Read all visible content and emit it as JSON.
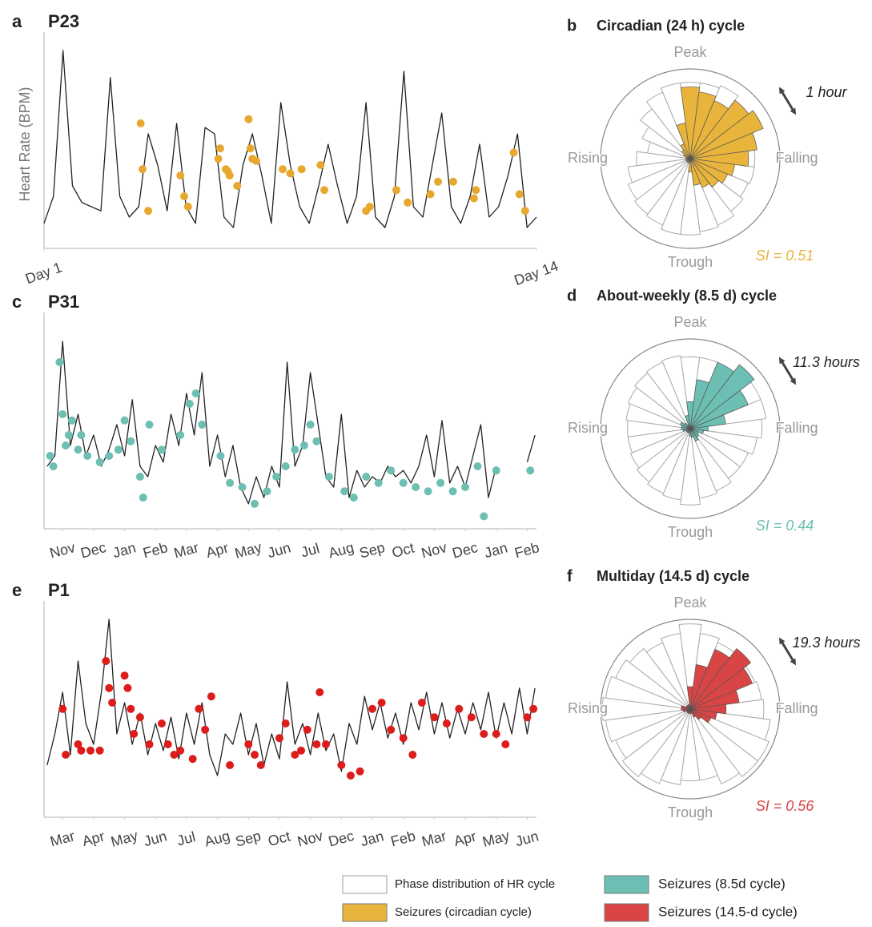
{
  "chart_data": [
    {
      "type": "line",
      "panel": "a",
      "title": "P23",
      "y_label": "Heart Rate (BPM)",
      "x": [
        1,
        1.25,
        1.5,
        1.75,
        2,
        2.25,
        2.5,
        2.75,
        3,
        3.25,
        3.5,
        3.75,
        4,
        4.25,
        4.5,
        4.75,
        5,
        5.25,
        5.5,
        5.75,
        6,
        6.25,
        6.5,
        6.75,
        7,
        7.25,
        7.5,
        7.75,
        8,
        8.25,
        8.5,
        8.75,
        9,
        9.25,
        9.5,
        9.75,
        10,
        10.25,
        10.5,
        10.75,
        11,
        11.25,
        11.5,
        11.75,
        12,
        12.25,
        12.5,
        12.75,
        13,
        13.25,
        13.5,
        13.75,
        14
      ],
      "xlim": [
        1,
        14
      ],
      "xticks": [
        {
          "value": 1,
          "label": "Day 1"
        },
        {
          "value": 14,
          "label": "Day 14"
        }
      ],
      "ylim": [
        0,
        100
      ],
      "series": [
        {
          "color": "#222222",
          "values": [
            12,
            25,
            95,
            30,
            22,
            20,
            18,
            82,
            25,
            15,
            20,
            55,
            40,
            18,
            60,
            20,
            12,
            58,
            55,
            15,
            10,
            40,
            55,
            35,
            12,
            70,
            40,
            20,
            12,
            30,
            50,
            30,
            12,
            25,
            70,
            15,
            10,
            25,
            85,
            20,
            15,
            40,
            65,
            20,
            12,
            25,
            50,
            15,
            20,
            35,
            55,
            10,
            15
          ]
        },
        {
          "type": "scatter",
          "color": "#e8a830",
          "x": [
            3.55,
            3.6,
            3.75,
            4.6,
            4.7,
            4.8,
            5.6,
            5.65,
            5.8,
            5.85,
            5.9,
            6.1,
            6.4,
            6.45,
            6.5,
            6.6,
            7.3,
            7.5,
            7.8,
            8.3,
            8.4,
            9.5,
            9.6,
            10.3,
            10.6,
            11.2,
            11.4,
            11.8,
            12.35,
            12.4,
            13.4,
            13.55,
            13.7
          ],
          "values": [
            60,
            38,
            18,
            35,
            25,
            20,
            43,
            48,
            38,
            37,
            35,
            30,
            62,
            48,
            43,
            42,
            38,
            36,
            38,
            40,
            28,
            18,
            20,
            28,
            22,
            26,
            32,
            32,
            24,
            28,
            46,
            26,
            18
          ]
        }
      ]
    },
    {
      "type": "polar-bar",
      "panel": "b",
      "title": "Circadian (24 h) cycle",
      "rlim": [
        0,
        100
      ],
      "direction_labels": [
        "Peak",
        "Falling",
        "Trough",
        "Rising"
      ],
      "series": [
        {
          "color": "#ffffff",
          "values": [
            85,
            85,
            88,
            80,
            78,
            75,
            72,
            72,
            70,
            74,
            80,
            82,
            85,
            85,
            80,
            78,
            75,
            70,
            60,
            48,
            58,
            70,
            80,
            85
          ]
        },
        {
          "color": "#e8b43c",
          "values": [
            80,
            75,
            70,
            82,
            88,
            75,
            65,
            50,
            45,
            40,
            35,
            30,
            15,
            5,
            5,
            5,
            5,
            5,
            5,
            5,
            8,
            12,
            18,
            40
          ]
        }
      ],
      "annotation": "1 hour",
      "si_label": "SI = 0.51"
    },
    {
      "type": "line",
      "panel": "c",
      "title": "P31",
      "x": [
        -0.5,
        -0.25,
        0,
        0.25,
        0.5,
        0.75,
        1,
        1.25,
        1.5,
        1.75,
        2,
        2.25,
        2.5,
        2.75,
        3,
        3.25,
        3.5,
        3.75,
        4,
        4.25,
        4.5,
        4.75,
        5,
        5.25,
        5.5,
        5.75,
        6,
        6.25,
        6.5,
        6.75,
        7,
        7.25,
        7.5,
        7.75,
        8,
        8.25,
        8.5,
        8.75,
        9,
        9.25,
        9.5,
        9.75,
        10,
        10.25,
        10.5,
        10.75,
        11,
        11.25,
        11.5,
        11.75,
        12,
        12.25,
        12.5,
        12.75,
        13,
        13.25,
        13.5,
        13.75,
        14,
        14.25,
        14.5,
        14.75,
        15,
        15.25
      ],
      "xlim": [
        -0.6,
        15.3
      ],
      "xticks": [
        {
          "value": 0,
          "label": "Nov"
        },
        {
          "value": 1,
          "label": "Dec"
        },
        {
          "value": 2,
          "label": "Jan"
        },
        {
          "value": 3,
          "label": "Feb"
        },
        {
          "value": 4,
          "label": "Mar"
        },
        {
          "value": 5,
          "label": "Apr"
        },
        {
          "value": 6,
          "label": "May"
        },
        {
          "value": 7,
          "label": "Jun"
        },
        {
          "value": 8,
          "label": "Jul"
        },
        {
          "value": 9,
          "label": "Aug"
        },
        {
          "value": 10,
          "label": "Sep"
        },
        {
          "value": 11,
          "label": "Oct"
        },
        {
          "value": 12,
          "label": "Nov"
        },
        {
          "value": 13,
          "label": "Dec"
        },
        {
          "value": 14,
          "label": "Jan"
        },
        {
          "value": 15,
          "label": "Feb"
        }
      ],
      "ylim": [
        0,
        100
      ],
      "series": [
        {
          "color": "#222222",
          "values": [
            30,
            35,
            90,
            40,
            55,
            35,
            45,
            30,
            38,
            50,
            35,
            62,
            30,
            25,
            40,
            32,
            55,
            40,
            65,
            45,
            75,
            30,
            45,
            25,
            40,
            20,
            12,
            25,
            15,
            30,
            20,
            80,
            30,
            40,
            75,
            50,
            25,
            20,
            55,
            15,
            28,
            20,
            25,
            22,
            30,
            25,
            28,
            22,
            30,
            45,
            25,
            52,
            22,
            30,
            20,
            35,
            50,
            15,
            30,
            null,
            null,
            null,
            32,
            45
          ]
        },
        {
          "type": "scatter",
          "color": "#6cbfb2",
          "x": [
            -0.4,
            -0.3,
            -0.1,
            0,
            0.1,
            0.2,
            0.3,
            0.5,
            0.6,
            0.8,
            1.2,
            1.5,
            1.8,
            2,
            2.2,
            2.5,
            2.6,
            2.8,
            3.2,
            3.8,
            4.1,
            4.3,
            4.5,
            5.1,
            5.4,
            5.8,
            6.2,
            6.6,
            6.9,
            7.2,
            7.5,
            7.8,
            8,
            8.2,
            8.6,
            9.1,
            9.4,
            9.8,
            10.2,
            10.6,
            11,
            11.4,
            11.8,
            12.2,
            12.6,
            13,
            13.4,
            13.6,
            14,
            15.1
          ],
          "values": [
            35,
            30,
            80,
            55,
            40,
            45,
            52,
            38,
            45,
            35,
            32,
            35,
            38,
            52,
            42,
            25,
            15,
            50,
            38,
            45,
            60,
            65,
            50,
            35,
            22,
            20,
            12,
            18,
            25,
            30,
            38,
            40,
            50,
            42,
            25,
            18,
            15,
            25,
            22,
            28,
            22,
            20,
            18,
            22,
            18,
            20,
            30,
            6,
            28,
            28
          ]
        }
      ]
    },
    {
      "type": "polar-bar",
      "panel": "d",
      "title": "About-weekly (8.5 d) cycle",
      "rlim": [
        0,
        100
      ],
      "direction_labels": [
        "Peak",
        "Falling",
        "Trough",
        "Rising"
      ],
      "series": [
        {
          "color": "#ffffff",
          "values": [
            80,
            80,
            78,
            82,
            85,
            85,
            80,
            75,
            70,
            70,
            75,
            78,
            85,
            80,
            78,
            75,
            72,
            70,
            70,
            72,
            75,
            78,
            80,
            82
          ]
        },
        {
          "color": "#6cbfb2",
          "values": [
            30,
            55,
            80,
            90,
            70,
            40,
            20,
            15,
            10,
            12,
            15,
            10,
            8,
            5,
            5,
            5,
            5,
            8,
            10,
            10,
            12,
            8,
            5,
            15
          ]
        }
      ],
      "annotation": "11.3 hours",
      "si_label": "SI = 0.44"
    },
    {
      "type": "line",
      "panel": "e",
      "title": "P1",
      "x": [
        -0.5,
        -0.25,
        0,
        0.25,
        0.5,
        0.75,
        1,
        1.25,
        1.5,
        1.75,
        2,
        2.25,
        2.5,
        2.75,
        3,
        3.25,
        3.5,
        3.75,
        4,
        4.25,
        4.5,
        4.75,
        5,
        5.25,
        5.5,
        5.75,
        6,
        6.25,
        6.5,
        6.75,
        7,
        7.25,
        7.5,
        7.75,
        8,
        8.25,
        8.5,
        8.75,
        9,
        9.25,
        9.5,
        9.75,
        10,
        10.25,
        10.5,
        10.75,
        11,
        11.25,
        11.5,
        11.75,
        12,
        12.25,
        12.5,
        12.75,
        13,
        13.25,
        13.5,
        13.75,
        14,
        14.25,
        14.5,
        14.75,
        15,
        15.25
      ],
      "xlim": [
        -0.6,
        15.3
      ],
      "xticks": [
        {
          "value": 0,
          "label": "Mar"
        },
        {
          "value": 1,
          "label": "Apr"
        },
        {
          "value": 2,
          "label": "May"
        },
        {
          "value": 3,
          "label": "Jun"
        },
        {
          "value": 4,
          "label": "Jul"
        },
        {
          "value": 5,
          "label": "Aug"
        },
        {
          "value": 6,
          "label": "Sep"
        },
        {
          "value": 7,
          "label": "Oct"
        },
        {
          "value": 8,
          "label": "Nov"
        },
        {
          "value": 9,
          "label": "Dec"
        },
        {
          "value": 10,
          "label": "Jan"
        },
        {
          "value": 11,
          "label": "Feb"
        },
        {
          "value": 12,
          "label": "Mar"
        },
        {
          "value": 13,
          "label": "Apr"
        },
        {
          "value": 14,
          "label": "May"
        },
        {
          "value": 15,
          "label": "Jun"
        }
      ],
      "ylim": [
        0,
        100
      ],
      "series": [
        {
          "color": "#222222",
          "values": [
            25,
            40,
            60,
            30,
            75,
            45,
            35,
            60,
            95,
            40,
            55,
            35,
            50,
            30,
            45,
            32,
            48,
            28,
            50,
            35,
            55,
            30,
            20,
            40,
            35,
            50,
            30,
            45,
            25,
            40,
            28,
            65,
            35,
            45,
            30,
            50,
            32,
            40,
            22,
            45,
            35,
            58,
            42,
            55,
            38,
            50,
            35,
            55,
            42,
            60,
            40,
            55,
            38,
            52,
            40,
            55,
            42,
            60,
            38,
            55,
            40,
            62,
            40,
            62
          ]
        },
        {
          "type": "scatter",
          "color": "#dd1c1c",
          "x": [
            0,
            0.1,
            0.5,
            0.6,
            0.9,
            1.2,
            1.4,
            1.5,
            1.6,
            2,
            2.1,
            2.2,
            2.3,
            2.5,
            2.8,
            3.2,
            3.4,
            3.6,
            3.8,
            4.2,
            4.4,
            4.6,
            4.8,
            5.4,
            6,
            6.2,
            6.4,
            7,
            7.2,
            7.5,
            7.7,
            7.9,
            8.2,
            8.3,
            8.5,
            9,
            9.3,
            9.6,
            10,
            10.3,
            10.6,
            11,
            11.3,
            11.6,
            12,
            12.4,
            12.8,
            13.2,
            13.6,
            14,
            14.3,
            15,
            15.2
          ],
          "values": [
            52,
            30,
            35,
            32,
            32,
            32,
            75,
            62,
            55,
            68,
            62,
            52,
            40,
            48,
            35,
            45,
            35,
            30,
            32,
            28,
            52,
            42,
            58,
            25,
            35,
            30,
            25,
            38,
            45,
            30,
            32,
            42,
            35,
            60,
            35,
            25,
            20,
            22,
            52,
            55,
            42,
            38,
            30,
            55,
            48,
            45,
            52,
            48,
            40,
            40,
            35,
            48,
            52
          ]
        }
      ]
    },
    {
      "type": "polar-bar",
      "panel": "f",
      "title": "Multiday (14.5 d) cycle",
      "rlim": [
        0,
        100
      ],
      "direction_labels": [
        "Peak",
        "Falling",
        "Trough",
        "Rising"
      ],
      "series": [
        {
          "color": "#ffffff",
          "values": [
            95,
            85,
            80,
            80,
            78,
            80,
            82,
            90,
            95,
            95,
            90,
            80,
            80,
            85,
            90,
            95,
            90,
            95,
            98,
            95,
            90,
            85,
            80,
            85
          ]
        },
        {
          "color": "#d94545",
          "values": [
            25,
            50,
            72,
            85,
            75,
            55,
            40,
            30,
            25,
            15,
            10,
            5,
            5,
            5,
            5,
            5,
            5,
            8,
            10,
            10,
            5,
            5,
            5,
            5
          ]
        }
      ],
      "annotation": "19.3 hours",
      "si_label": "SI = 0.56"
    }
  ],
  "legend": {
    "items": [
      {
        "label": "Phase distribution of HR cycle",
        "color": "#ffffff"
      },
      {
        "label": "Seizures (circadian cycle)",
        "color": "#e8b43c"
      },
      {
        "label": "Seizures (8.5d cycle)",
        "color": "#6cbfb2"
      },
      {
        "label": "Seizures (14.5-d cycle)",
        "color": "#d94545"
      }
    ]
  }
}
